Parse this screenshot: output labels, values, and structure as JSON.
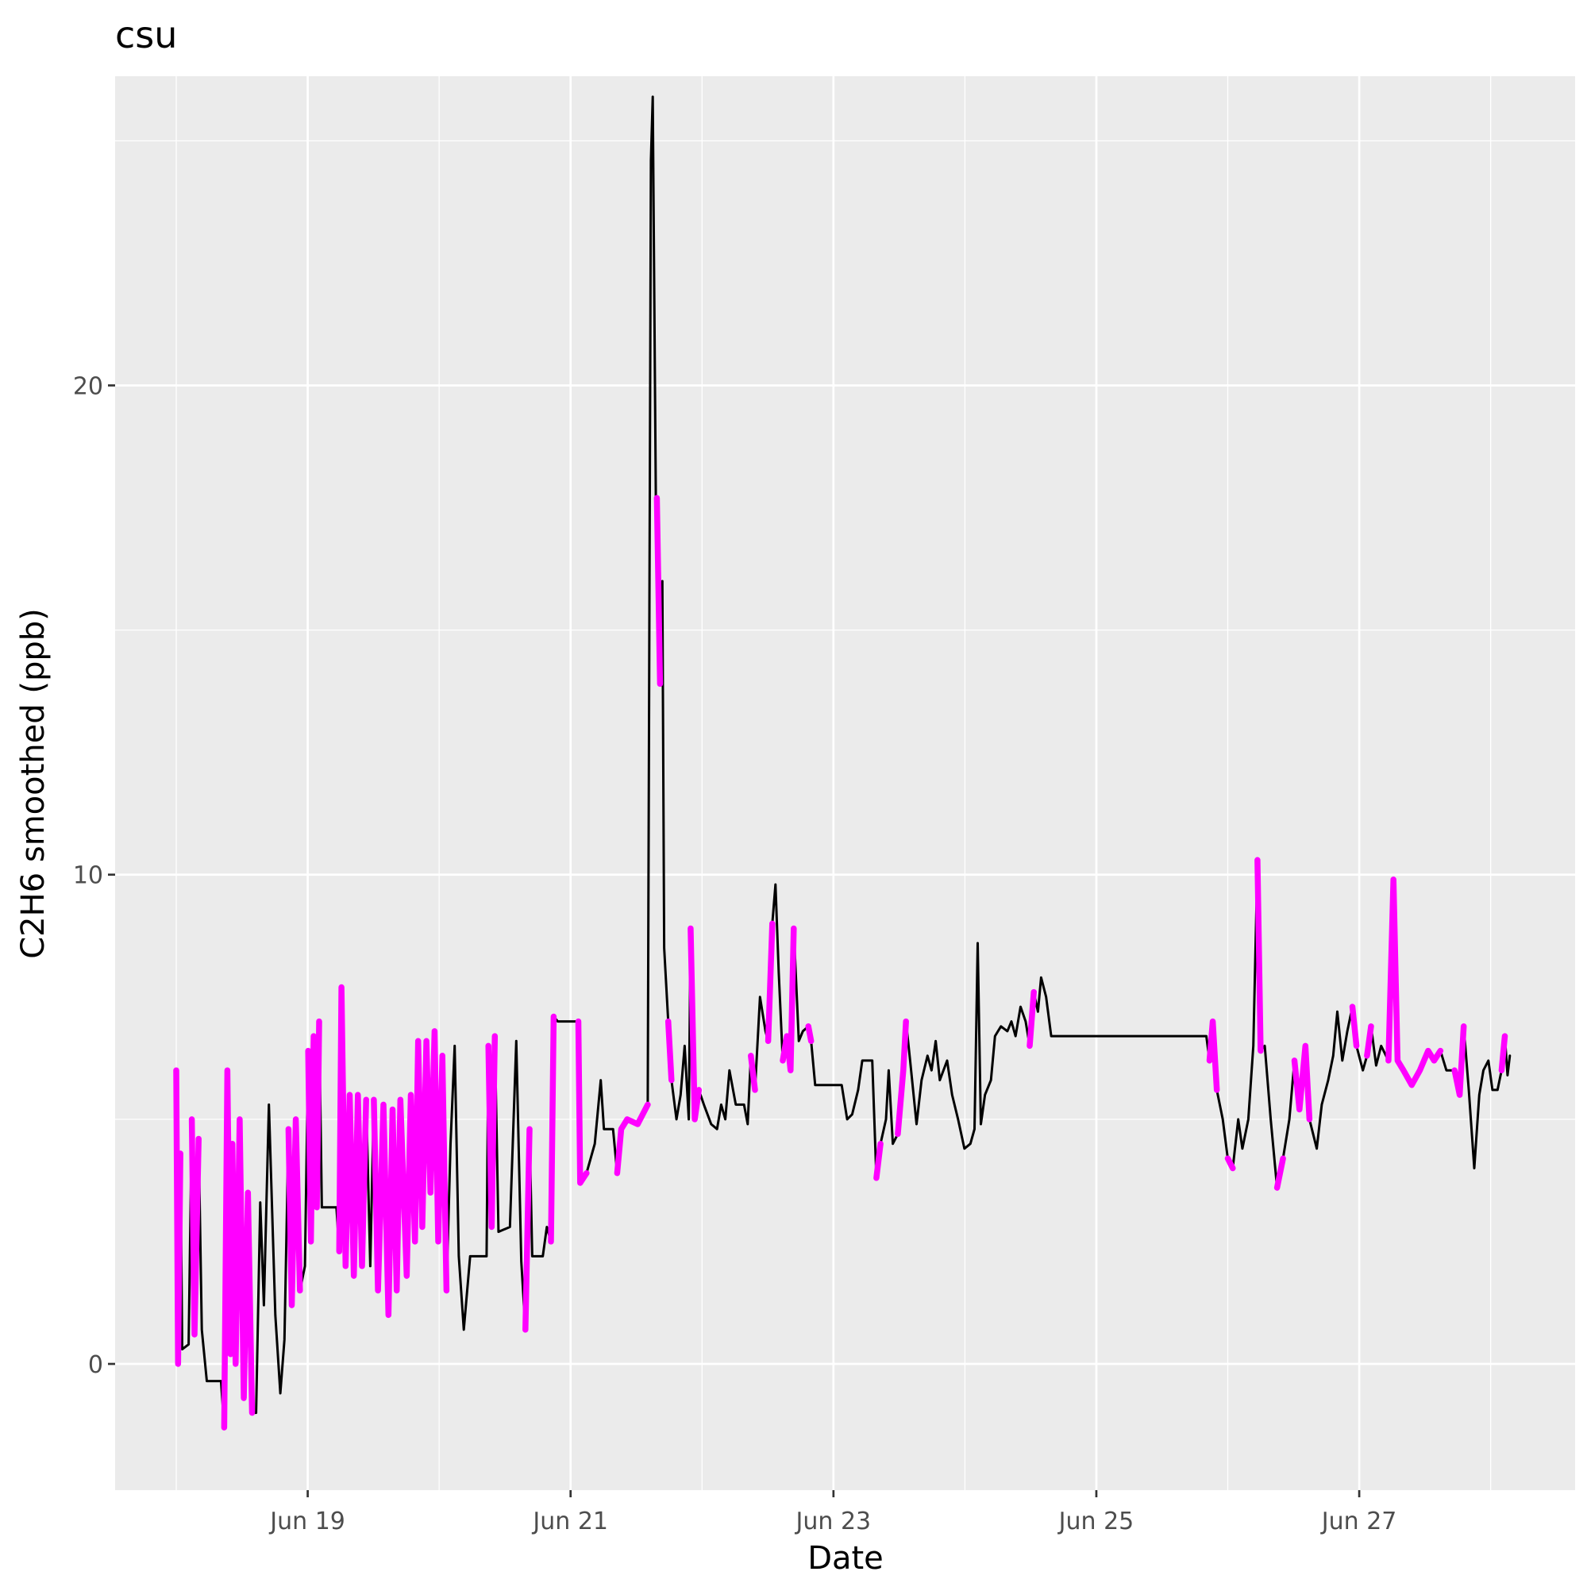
{
  "chart_data": {
    "type": "line",
    "title": "csu",
    "x_label": "Date",
    "y_label": "C2H6 smoothed (ppb)",
    "xlim": [
      "Jun 17 12:50",
      "Jun 28 15:25"
    ],
    "xticks": [
      "Jun 19",
      "Jun 21",
      "Jun 23",
      "Jun 25",
      "Jun 27"
    ],
    "ylim": [
      -2.58,
      26.32
    ],
    "yticks": [
      0,
      10,
      20
    ],
    "grid": true,
    "x": [
      "Jun 18 00:00",
      "Jun 18 00:20",
      "Jun 18 00:45",
      "Jun 18 01:05",
      "Jun 18 02:15",
      "Jun 18 02:50",
      "Jun 18 03:20",
      "Jun 18 04:05",
      "Jun 18 04:40",
      "Jun 18 05:35",
      "Jun 18 08:10",
      "Jun 18 08:45",
      "Jun 18 09:20",
      "Jun 18 09:55",
      "Jun 18 10:15",
      "Jun 18 10:50",
      "Jun 18 11:35",
      "Jun 18 12:20",
      "Jun 18 13:05",
      "Jun 18 13:50",
      "Jun 18 14:35",
      "Jun 18 15:20",
      "Jun 18 16:00",
      "Jun 18 16:55",
      "Jun 18 18:05",
      "Jun 18 19:00",
      "Jun 18 19:45",
      "Jun 18 20:30",
      "Jun 18 21:05",
      "Jun 18 21:50",
      "Jun 18 22:35",
      "Jun 18 23:30",
      "Jun 19 00:05",
      "Jun 19 00:35",
      "Jun 19 01:05",
      "Jun 19 01:40",
      "Jun 19 02:05",
      "Jun 19 02:35",
      "Jun 19 05:15",
      "Jun 19 05:45",
      "Jun 19 06:10",
      "Jun 19 06:55",
      "Jun 19 07:40",
      "Jun 19 08:25",
      "Jun 19 09:10",
      "Jun 19 09:55",
      "Jun 19 10:40",
      "Jun 19 11:25",
      "Jun 19 12:05",
      "Jun 19 12:50",
      "Jun 19 13:50",
      "Jun 19 14:45",
      "Jun 19 15:30",
      "Jun 19 16:15",
      "Jun 19 16:55",
      "Jun 19 18:05",
      "Jun 19 18:50",
      "Jun 19 19:35",
      "Jun 19 20:10",
      "Jun 19 20:55",
      "Jun 19 21:40",
      "Jun 19 22:25",
      "Jun 19 23:10",
      "Jun 19 23:50",
      "Jun 20 00:35",
      "Jun 20 01:20",
      "Jun 20 02:05",
      "Jun 20 02:50",
      "Jun 20 03:35",
      "Jun 20 04:30",
      "Jun 20 05:40",
      "Jun 20 08:40",
      "Jun 20 09:00",
      "Jun 20 09:35",
      "Jun 20 10:10",
      "Jun 20 10:50",
      "Jun 20 12:55",
      "Jun 20 14:05",
      "Jun 20 15:00",
      "Jun 20 15:45",
      "Jun 20 16:30",
      "Jun 20 17:00",
      "Jun 20 18:55",
      "Jun 20 19:40",
      "Jun 20 20:25",
      "Jun 20 20:55",
      "Jun 20 21:40",
      "Jun 21 01:25",
      "Jun 21 01:45",
      "Jun 21 02:55",
      "Jun 21 04:25",
      "Jun 21 05:30",
      "Jun 21 06:05",
      "Jun 21 07:45",
      "Jun 21 08:30",
      "Jun 21 09:15",
      "Jun 21 10:20",
      "Jun 21 12:15",
      "Jun 21 14:05",
      "Jun 21 14:40",
      "Jun 21 15:00",
      "Jun 21 15:35",
      "Jun 21 15:45",
      "Jun 21 16:20",
      "Jun 21 16:45",
      "Jun 21 17:05",
      "Jun 21 17:50",
      "Jun 21 18:25",
      "Jun 21 19:20",
      "Jun 21 20:05",
      "Jun 21 20:50",
      "Jun 21 21:35",
      "Jun 21 21:55",
      "Jun 21 22:40",
      "Jun 21 23:25",
      "Jun 22 00:20",
      "Jun 22 01:40",
      "Jun 22 02:45",
      "Jun 22 03:30",
      "Jun 22 04:15",
      "Jun 22 05:00",
      "Jun 22 06:10",
      "Jun 22 07:40",
      "Jun 22 08:20",
      "Jun 22 08:55",
      "Jun 22 09:40",
      "Jun 22 10:35",
      "Jun 22 11:35",
      "Jun 22 12:05",
      "Jun 22 12:50",
      "Jun 22 13:25",
      "Jun 22 14:00",
      "Jun 22 14:45",
      "Jun 22 15:30",
      "Jun 22 16:10",
      "Jun 22 16:45",
      "Jun 22 17:40",
      "Jun 22 18:25",
      "Jun 22 19:25",
      "Jun 22 19:55",
      "Jun 22 20:40",
      "Jun 23 01:30",
      "Jun 23 02:30",
      "Jun 23 03:25",
      "Jun 23 04:30",
      "Jun 23 05:15",
      "Jun 23 07:05",
      "Jun 23 07:50",
      "Jun 23 08:35",
      "Jun 23 09:35",
      "Jun 23 10:05",
      "Jun 23 10:50",
      "Jun 23 11:45",
      "Jun 23 12:45",
      "Jun 23 13:15",
      "Jun 23 14:00",
      "Jun 23 15:10",
      "Jun 23 16:05",
      "Jun 23 17:10",
      "Jun 23 17:55",
      "Jun 23 18:40",
      "Jun 23 19:25",
      "Jun 23 20:45",
      "Jun 23 21:40",
      "Jun 23 22:45",
      "Jun 23 23:55",
      "Jun 24 01:00",
      "Jun 24 01:45",
      "Jun 24 02:20",
      "Jun 24 02:55",
      "Jun 24 03:40",
      "Jun 24 04:45",
      "Jun 24 05:30",
      "Jun 24 06:35",
      "Jun 24 07:45",
      "Jun 24 08:30",
      "Jun 24 09:15",
      "Jun 24 10:10",
      "Jun 24 11:05",
      "Jun 24 11:50",
      "Jun 24 12:35",
      "Jun 24 13:20",
      "Jun 24 13:55",
      "Jun 24 14:50",
      "Jun 24 15:45",
      "Jun 25 20:05",
      "Jun 25 20:40",
      "Jun 25 21:15",
      "Jun 25 22:00",
      "Jun 25 23:05",
      "Jun 26 00:00",
      "Jun 26 00:55",
      "Jun 26 01:55",
      "Jun 26 02:40",
      "Jun 26 03:45",
      "Jun 26 04:40",
      "Jun 26 05:25",
      "Jun 26 06:00",
      "Jun 26 06:45",
      "Jun 26 07:50",
      "Jun 26 09:00",
      "Jun 26 10:05",
      "Jun 26 11:15",
      "Jun 26 12:10",
      "Jun 26 13:05",
      "Jun 26 14:10",
      "Jun 26 14:55",
      "Jun 26 16:15",
      "Jun 26 17:10",
      "Jun 26 18:20",
      "Jun 26 19:15",
      "Jun 26 20:00",
      "Jun 26 20:55",
      "Jun 26 21:50",
      "Jun 26 22:45",
      "Jun 26 23:30",
      "Jun 27 00:40",
      "Jun 27 01:25",
      "Jun 27 02:10",
      "Jun 27 03:05",
      "Jun 27 04:00",
      "Jun 27 05:20",
      "Jun 27 06:15",
      "Jun 27 07:00",
      "Jun 27 08:05",
      "Jun 27 09:35",
      "Jun 27 11:05",
      "Jun 27 12:35",
      "Jun 27 13:40",
      "Jun 27 14:50",
      "Jun 27 15:55",
      "Jun 27 17:25",
      "Jun 27 18:20",
      "Jun 27 19:05",
      "Jun 27 20:00",
      "Jun 27 21:00",
      "Jun 27 21:55",
      "Jun 27 22:40",
      "Jun 27 23:35",
      "Jun 28 00:20",
      "Jun 28 01:15",
      "Jun 28 02:00",
      "Jun 28 02:35",
      "Jun 28 03:05",
      "Jun 28 03:30"
    ],
    "series": [
      {
        "color": "#000000",
        "values": [
          6.0,
          0,
          4.3,
          0.3,
          0.4,
          5.0,
          0.6,
          4.6,
          0.7,
          -0.35,
          -0.35,
          -1.3,
          6.0,
          0.2,
          4.5,
          0.0,
          5.0,
          -0.7,
          3.5,
          -1.0,
          -1.0,
          3.3,
          1.2,
          5.3,
          1.0,
          -0.6,
          0.5,
          4.8,
          1.2,
          5.0,
          1.5,
          2.0,
          6.4,
          2.5,
          6.7,
          3.2,
          7.0,
          3.2,
          3.2,
          2.3,
          7.7,
          2.0,
          5.5,
          1.8,
          5.5,
          2.0,
          5.4,
          2.0,
          5.4,
          1.5,
          5.3,
          1.0,
          5.2,
          1.5,
          5.4,
          1.8,
          5.5,
          2.5,
          6.6,
          2.8,
          6.6,
          3.5,
          6.8,
          2.5,
          6.3,
          1.5,
          4.5,
          6.5,
          2.2,
          0.7,
          2.2,
          2.2,
          6.5,
          2.8,
          6.7,
          2.7,
          2.8,
          6.6,
          2.1,
          0.7,
          4.8,
          2.2,
          2.2,
          2.8,
          2.5,
          7.1,
          7.0,
          7.0,
          3.7,
          3.9,
          4.5,
          5.8,
          4.8,
          4.8,
          3.9,
          4.8,
          5.0,
          4.9,
          5.3,
          24.6,
          25.9,
          17.5,
          17.7,
          13.9,
          16.0,
          8.5,
          7.0,
          5.8,
          5.0,
          5.5,
          6.5,
          5.0,
          8.9,
          5.0,
          5.6,
          5.3,
          4.9,
          4.8,
          5.3,
          5.0,
          6.0,
          5.3,
          5.3,
          4.9,
          6.3,
          5.6,
          7.5,
          6.8,
          6.6,
          9.0,
          9.8,
          8.0,
          6.2,
          6.7,
          6.0,
          8.9,
          6.6,
          6.8,
          6.9,
          6.6,
          5.7,
          5.7,
          5.0,
          5.1,
          5.6,
          6.2,
          6.2,
          3.8,
          4.5,
          5.0,
          6.0,
          4.5,
          4.7,
          6.0,
          7.0,
          6.2,
          4.9,
          5.8,
          6.3,
          6.0,
          6.6,
          5.8,
          6.2,
          5.5,
          5.0,
          4.4,
          4.5,
          4.8,
          8.6,
          4.9,
          5.5,
          5.8,
          6.7,
          6.9,
          6.8,
          7.0,
          6.7,
          7.3,
          7.0,
          6.5,
          7.6,
          7.2,
          7.9,
          7.5,
          6.7,
          6.7,
          6.2,
          7.0,
          5.6,
          5.0,
          4.2,
          4.0,
          5.0,
          4.4,
          5.0,
          6.5,
          10.3,
          6.4,
          6.5,
          5.0,
          3.6,
          4.2,
          5.0,
          6.2,
          5.2,
          6.5,
          5.0,
          4.4,
          5.3,
          5.8,
          6.3,
          7.2,
          6.2,
          6.8,
          7.3,
          6.5,
          6.0,
          6.3,
          6.9,
          6.1,
          6.5,
          6.2,
          9.9,
          6.2,
          6.0,
          5.7,
          6.0,
          6.4,
          6.2,
          6.4,
          6.0,
          6.0,
          5.5,
          6.9,
          5.6,
          4.0,
          5.5,
          6.0,
          6.2,
          5.6,
          5.6,
          6.0,
          6.7,
          5.9,
          6.3
        ]
      },
      {
        "color": "#ff00ff",
        "values": [
          6.0,
          0,
          4.3,
          null,
          null,
          5.0,
          0.6,
          4.6,
          null,
          null,
          null,
          -1.3,
          6.0,
          0.2,
          4.5,
          0.0,
          5.0,
          -0.7,
          3.5,
          -1.0,
          null,
          3.3,
          null,
          5.3,
          null,
          -0.6,
          null,
          4.8,
          1.2,
          5.0,
          1.5,
          null,
          6.4,
          2.5,
          6.7,
          3.2,
          7.0,
          null,
          null,
          2.3,
          7.7,
          2.0,
          5.5,
          1.8,
          5.5,
          2.0,
          5.4,
          null,
          5.4,
          1.5,
          5.3,
          1.0,
          5.2,
          1.5,
          5.4,
          1.8,
          5.5,
          2.5,
          6.6,
          2.8,
          6.6,
          3.5,
          6.8,
          2.5,
          6.3,
          1.5,
          null,
          6.5,
          null,
          0.7,
          null,
          null,
          6.5,
          2.8,
          6.7,
          null,
          null,
          6.6,
          null,
          0.7,
          4.8,
          null,
          null,
          null,
          2.5,
          7.1,
          null,
          7.0,
          3.7,
          3.9,
          null,
          null,
          null,
          null,
          3.9,
          4.8,
          5.0,
          4.9,
          5.3,
          null,
          null,
          null,
          17.7,
          13.9,
          null,
          null,
          7.0,
          5.8,
          null,
          null,
          null,
          null,
          8.9,
          5.0,
          5.6,
          null,
          4.9,
          null,
          null,
          null,
          6.0,
          null,
          null,
          null,
          6.3,
          5.6,
          null,
          null,
          6.6,
          9.0,
          null,
          null,
          6.2,
          6.7,
          6.0,
          8.9,
          null,
          null,
          6.9,
          6.6,
          null,
          null,
          5.0,
          null,
          5.6,
          null,
          null,
          3.8,
          4.5,
          null,
          6.0,
          null,
          4.7,
          6.0,
          7.0,
          null,
          4.9,
          null,
          6.3,
          null,
          null,
          5.8,
          null,
          5.5,
          null,
          4.4,
          null,
          null,
          8.6,
          null,
          null,
          null,
          6.7,
          null,
          6.8,
          null,
          null,
          null,
          null,
          6.5,
          7.6,
          null,
          null,
          7.5,
          null,
          null,
          6.2,
          7.0,
          5.6,
          null,
          4.2,
          4.0,
          null,
          4.4,
          null,
          null,
          10.3,
          6.4,
          null,
          null,
          3.6,
          4.2,
          null,
          6.2,
          5.2,
          6.5,
          5.0,
          null,
          5.3,
          null,
          6.3,
          null,
          6.2,
          null,
          7.3,
          6.5,
          null,
          6.3,
          6.9,
          null,
          null,
          6.2,
          9.9,
          6.2,
          6.0,
          5.7,
          6.0,
          6.4,
          6.2,
          6.4,
          null,
          6.0,
          5.5,
          6.9,
          null,
          4.0,
          null,
          6.0,
          null,
          5.6,
          null,
          6.0,
          6.7,
          null,
          null
        ]
      }
    ]
  }
}
